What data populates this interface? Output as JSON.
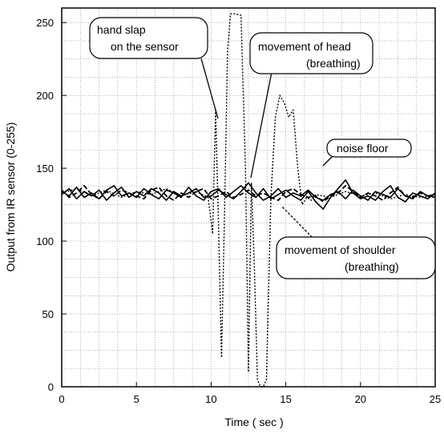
{
  "chart_data": {
    "type": "line",
    "title": "",
    "xlabel": "Time ( sec )",
    "ylabel": "Output from IR sensor (0-255)",
    "xlim": [
      0,
      25
    ],
    "ylim": [
      0,
      260
    ],
    "grid": true,
    "x_ticks": [
      "0",
      "5",
      "10",
      "15",
      "20",
      "25"
    ],
    "y_ticks": [
      "0",
      "50",
      "100",
      "150",
      "200",
      "250"
    ],
    "x_tick_values": [
      0,
      5,
      10,
      15,
      20,
      25
    ],
    "y_tick_values": [
      0,
      50,
      100,
      150,
      200,
      250
    ],
    "series": [
      {
        "style": "dotted",
        "x": [
          0,
          1,
          2,
          3,
          4,
          5,
          6,
          7,
          8,
          9,
          9.8,
          10.1,
          10.3,
          10.5,
          10.7,
          10.9,
          11.1,
          11.3,
          11.6,
          12.0,
          12.3,
          12.5,
          12.7,
          12.9,
          13.1,
          13.3,
          13.5,
          13.7,
          14.0,
          14.3,
          14.6,
          14.9,
          15.2,
          15.5,
          15.8,
          16.1,
          16.4,
          16.7,
          17.0,
          18,
          19,
          20,
          21,
          22,
          23,
          24,
          25
        ],
        "y": [
          133,
          136,
          131,
          135,
          130,
          134,
          132,
          136,
          131,
          134,
          130,
          105,
          190,
          110,
          20,
          120,
          230,
          256,
          256,
          255,
          150,
          10,
          140,
          80,
          5,
          0,
          0,
          5,
          130,
          185,
          200,
          195,
          185,
          190,
          150,
          125,
          130,
          128,
          132,
          130,
          134,
          131,
          133,
          129,
          132,
          130,
          131
        ]
      },
      {
        "style": "solid",
        "x": [
          0,
          0.5,
          1,
          1.5,
          2,
          2.5,
          3,
          3.5,
          4,
          4.5,
          5,
          5.5,
          6,
          6.5,
          7,
          7.5,
          8,
          8.5,
          9,
          9.5,
          10,
          10.5,
          11,
          11.5,
          12,
          12.5,
          13,
          13.5,
          14,
          14.5,
          15,
          15.5,
          16,
          16.5,
          17,
          17.5,
          18,
          18.5,
          19,
          19.5,
          20,
          20.5,
          21,
          21.5,
          22,
          22.5,
          23,
          23.5,
          24,
          24.5,
          25
        ],
        "y": [
          134,
          131,
          137,
          130,
          133,
          129,
          135,
          138,
          131,
          133,
          130,
          136,
          132,
          129,
          135,
          133,
          130,
          137,
          131,
          128,
          134,
          136,
          130,
          134,
          138,
          133,
          130,
          136,
          129,
          132,
          135,
          131,
          128,
          134,
          127,
          122,
          130,
          136,
          142,
          133,
          129,
          131,
          128,
          134,
          138,
          130,
          127,
          133,
          131,
          129,
          133
        ]
      },
      {
        "style": "solid",
        "x": [
          0,
          0.5,
          1,
          1.5,
          2,
          2.5,
          3,
          3.5,
          4,
          4.5,
          5,
          5.5,
          6,
          6.5,
          7,
          7.5,
          8,
          8.5,
          9,
          9.5,
          10,
          10.5,
          11,
          11.5,
          12,
          12.5,
          13,
          13.5,
          14,
          14.5,
          15,
          15.5,
          16,
          16.5,
          17,
          17.5,
          18,
          18.5,
          19,
          19.5,
          20,
          20.5,
          21,
          21.5,
          22,
          22.5,
          23,
          23.5,
          24,
          24.5,
          25
        ],
        "y": [
          132,
          136,
          129,
          134,
          131,
          135,
          128,
          133,
          137,
          130,
          134,
          131,
          136,
          133,
          128,
          134,
          131,
          133,
          136,
          130,
          131,
          135,
          132,
          129,
          134,
          140,
          133,
          128,
          131,
          136,
          130,
          133,
          131,
          135,
          130,
          128,
          132,
          134,
          129,
          135,
          131,
          128,
          134,
          132,
          130,
          136,
          131,
          129,
          134,
          131,
          132
        ]
      },
      {
        "style": "dashed",
        "x": [
          0,
          0.5,
          1,
          1.5,
          2,
          2.5,
          3,
          3.5,
          4,
          4.5,
          5,
          5.5,
          6,
          6.5,
          7,
          7.5,
          8,
          8.5,
          9,
          9.5,
          10,
          10.5,
          11,
          11.5,
          12,
          12.5,
          13,
          13.5,
          14,
          14.5,
          15,
          15.5,
          16,
          16.5,
          17,
          17.5,
          18,
          18.5,
          19,
          19.5,
          20,
          20.5,
          21,
          21.5,
          22,
          22.5,
          23,
          23.5,
          24,
          24.5,
          25
        ],
        "y": [
          135,
          130,
          133,
          138,
          132,
          129,
          134,
          131,
          135,
          133,
          131,
          129,
          135,
          137,
          131,
          128,
          133,
          130,
          134,
          136,
          129,
          131,
          134,
          130,
          132,
          135,
          131,
          133,
          130,
          128,
          134,
          136,
          132,
          130,
          131,
          127,
          131,
          133,
          138,
          134,
          130,
          133,
          131,
          128,
          133,
          137,
          131,
          130,
          133,
          131,
          130
        ]
      }
    ],
    "annotations": [
      {
        "lines": [
          "hand slap",
          "on the sensor"
        ]
      },
      {
        "lines": [
          "movement of head",
          "(breathing)"
        ]
      },
      {
        "lines": [
          "noise floor"
        ]
      },
      {
        "lines": [
          "movement of shoulder",
          "(breathing)"
        ]
      }
    ]
  }
}
